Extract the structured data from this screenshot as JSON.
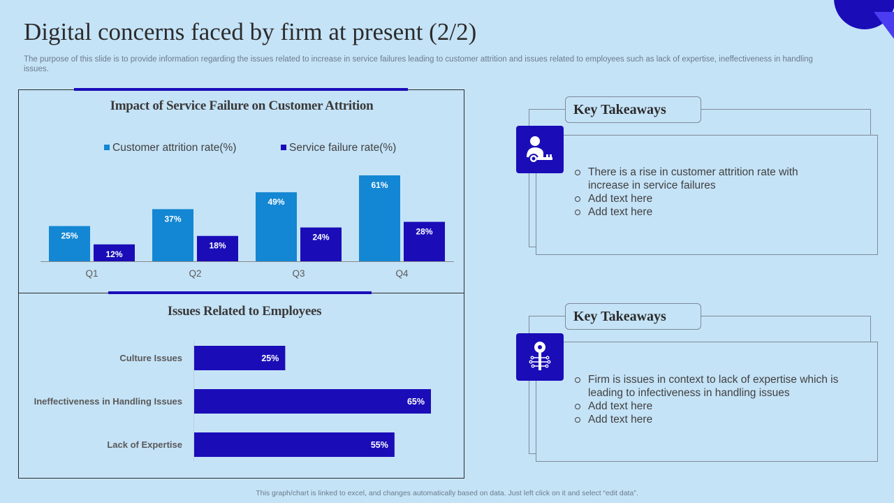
{
  "slide": {
    "title": "Digital concerns faced by firm at present (2/2)",
    "subtitle": "The purpose of this slide is to provide information regarding the issues related to increase in service failures leading to customer attrition and issues related to employees such as lack of expertise, ineffectiveness in handling issues.",
    "footer": "This graph/chart is linked to excel, and changes automatically based on data. Just left click on it and select “edit data”."
  },
  "colors": {
    "background": "#c5e3f7",
    "attrition": "#1387d3",
    "failure": "#1a0db8",
    "accent": "#1a0db8"
  },
  "chart_data": [
    {
      "type": "bar",
      "title": "Impact of Service Failure on Customer Attrition",
      "categories": [
        "Q1",
        "Q2",
        "Q3",
        "Q4"
      ],
      "series": [
        {
          "name": "Customer attrition rate(%)",
          "values": [
            25,
            37,
            49,
            61
          ],
          "labels": [
            "25%",
            "37%",
            "49%",
            "61%"
          ],
          "color": "#1387d3"
        },
        {
          "name": "Service failure rate(%)",
          "values": [
            12,
            18,
            24,
            28
          ],
          "labels": [
            "12%",
            "18%",
            "24%",
            "28%"
          ],
          "color": "#1a0db8"
        }
      ],
      "ylim": [
        0,
        61
      ],
      "legend": "top",
      "grid": false
    },
    {
      "type": "bar",
      "orientation": "horizontal",
      "title": "Issues Related to Employees",
      "categories": [
        "Culture Issues",
        "Ineffectiveness in Handling Issues",
        "Lack of Expertise"
      ],
      "values": [
        25,
        65,
        55
      ],
      "labels": [
        "25%",
        "65%",
        "55%"
      ],
      "xlim": [
        0,
        65
      ],
      "color": "#1a0db8",
      "grid": false
    }
  ],
  "takeaways": [
    {
      "heading": "Key Takeaways",
      "icon": "user-key-icon",
      "items": [
        "There is a rise in customer attrition rate with increase in service failures",
        "Add text here",
        "Add text here"
      ]
    },
    {
      "heading": "Key Takeaways",
      "icon": "circuit-key-icon",
      "items": [
        "Firm is issues in context to lack of expertise which is leading to infectiveness in handling issues",
        "Add text here",
        "Add text here"
      ]
    }
  ]
}
